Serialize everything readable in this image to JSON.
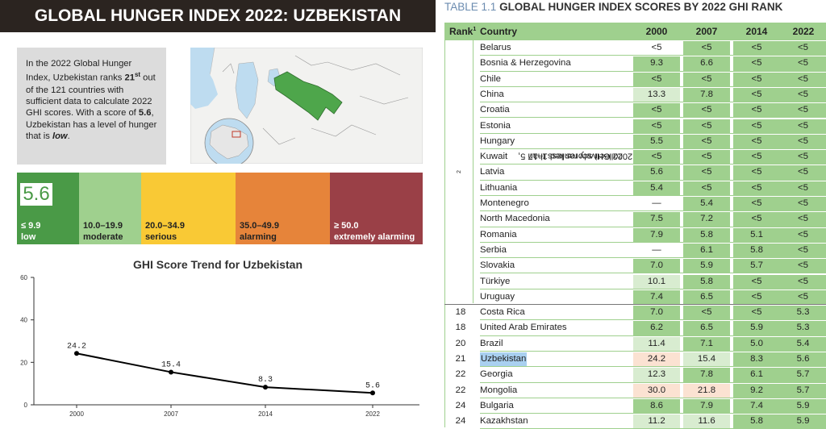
{
  "left": {
    "title": "GLOBAL HUNGER INDEX 2022: UZBEKISTAN",
    "info": {
      "part1": "In the 2022 Global Hunger Index, Uzbekistan ranks ",
      "rank": "21",
      "rank_sup": "st",
      "part2": " out of the 121 countries with sufficient data to calculate 2022 GHI scores. With a score of ",
      "score": "5.6",
      "part3": ", Uzbekistan has a level of hunger that is ",
      "level": "low",
      "part4": "."
    },
    "score_display": "5.6",
    "scale": [
      {
        "range": "≤ 9.9",
        "level": "low",
        "color": "#4a9a47",
        "dark": false
      },
      {
        "range": "10.0–19.9",
        "level": "moderate",
        "color": "#9fd08e",
        "dark": true
      },
      {
        "range": "20.0–34.9",
        "level": "serious",
        "color": "#f9c935",
        "dark": true
      },
      {
        "range": "35.0–49.9",
        "level": "alarming",
        "color": "#e6843a",
        "dark": true
      },
      {
        "range": "≥ 50.0",
        "level": "extremely alarming",
        "color": "#9a4047",
        "dark": false
      }
    ],
    "trend_title": "GHI Score Trend for Uzbekistan"
  },
  "chart_data": {
    "type": "line",
    "title": "GHI Score Trend for Uzbekistan",
    "x": [
      "2000",
      "2007",
      "2014",
      "2022"
    ],
    "values": [
      24.2,
      15.4,
      8.3,
      5.6
    ],
    "value_labels": [
      "24.2",
      "15.4",
      "8.3",
      "5.6"
    ],
    "yticks": [
      "0",
      "20",
      "40",
      "60"
    ],
    "ylim": [
      0,
      60
    ],
    "grid": false,
    "color": "#000000"
  },
  "table": {
    "number": "TABLE 1.1",
    "title": "GLOBAL HUNGER INDEX SCORES BY 2022 GHI RANK",
    "headers": {
      "rank": "Rank",
      "rank_sup": "1",
      "country": "Country",
      "y2000": "2000",
      "y2007": "2007",
      "y2014": "2014",
      "y2022": "2022"
    },
    "group_label_line1": "2022 GHI scores less than 5,",
    "group_label_line2": "collectively ranked 1–17",
    "group_label_sup": "2",
    "colors": {
      "low": "#9fd08e",
      "moderate": "#d8ecd0",
      "serious": "#fbe2d2",
      "none": "#ffffff"
    },
    "rows": [
      {
        "rank": "",
        "country": "Belarus",
        "v": [
          "<5",
          "<5",
          "<5",
          "<5"
        ],
        "c": [
          "none",
          "low",
          "low",
          "low"
        ]
      },
      {
        "rank": "",
        "country": "Bosnia & Herzegovina",
        "v": [
          "9.3",
          "6.6",
          "<5",
          "<5"
        ],
        "c": [
          "low",
          "low",
          "low",
          "low"
        ]
      },
      {
        "rank": "",
        "country": "Chile",
        "v": [
          "<5",
          "<5",
          "<5",
          "<5"
        ],
        "c": [
          "low",
          "low",
          "low",
          "low"
        ]
      },
      {
        "rank": "",
        "country": "China",
        "v": [
          "13.3",
          "7.8",
          "<5",
          "<5"
        ],
        "c": [
          "moderate",
          "low",
          "low",
          "low"
        ]
      },
      {
        "rank": "",
        "country": "Croatia",
        "v": [
          "<5",
          "<5",
          "<5",
          "<5"
        ],
        "c": [
          "low",
          "low",
          "low",
          "low"
        ]
      },
      {
        "rank": "",
        "country": "Estonia",
        "v": [
          "<5",
          "<5",
          "<5",
          "<5"
        ],
        "c": [
          "low",
          "low",
          "low",
          "low"
        ]
      },
      {
        "rank": "",
        "country": "Hungary",
        "v": [
          "5.5",
          "<5",
          "<5",
          "<5"
        ],
        "c": [
          "low",
          "low",
          "low",
          "low"
        ]
      },
      {
        "rank": "",
        "country": "Kuwait",
        "v": [
          "<5",
          "<5",
          "<5",
          "<5"
        ],
        "c": [
          "low",
          "low",
          "low",
          "low"
        ]
      },
      {
        "rank": "",
        "country": "Latvia",
        "v": [
          "5.6",
          "<5",
          "<5",
          "<5"
        ],
        "c": [
          "low",
          "low",
          "low",
          "low"
        ]
      },
      {
        "rank": "",
        "country": "Lithuania",
        "v": [
          "5.4",
          "<5",
          "<5",
          "<5"
        ],
        "c": [
          "low",
          "low",
          "low",
          "low"
        ]
      },
      {
        "rank": "",
        "country": "Montenegro",
        "v": [
          "—",
          "5.4",
          "<5",
          "<5"
        ],
        "c": [
          "none",
          "low",
          "low",
          "low"
        ]
      },
      {
        "rank": "",
        "country": "North Macedonia",
        "v": [
          "7.5",
          "7.2",
          "<5",
          "<5"
        ],
        "c": [
          "low",
          "low",
          "low",
          "low"
        ]
      },
      {
        "rank": "",
        "country": "Romania",
        "v": [
          "7.9",
          "5.8",
          "5.1",
          "<5"
        ],
        "c": [
          "low",
          "low",
          "low",
          "low"
        ]
      },
      {
        "rank": "",
        "country": "Serbia",
        "v": [
          "—",
          "6.1",
          "5.8",
          "<5"
        ],
        "c": [
          "none",
          "low",
          "low",
          "low"
        ]
      },
      {
        "rank": "",
        "country": "Slovakia",
        "v": [
          "7.0",
          "5.9",
          "5.7",
          "<5"
        ],
        "c": [
          "low",
          "low",
          "low",
          "low"
        ]
      },
      {
        "rank": "",
        "country": "Türkiye",
        "v": [
          "10.1",
          "5.8",
          "<5",
          "<5"
        ],
        "c": [
          "moderate",
          "low",
          "low",
          "low"
        ]
      },
      {
        "rank": "",
        "country": "Uruguay",
        "v": [
          "7.4",
          "6.5",
          "<5",
          "<5"
        ],
        "c": [
          "low",
          "low",
          "low",
          "low"
        ]
      },
      {
        "rank": "18",
        "country": "Costa Rica",
        "v": [
          "7.0",
          "<5",
          "<5",
          "5.3"
        ],
        "c": [
          "low",
          "low",
          "low",
          "low"
        ]
      },
      {
        "rank": "18",
        "country": "United Arab Emirates",
        "v": [
          "6.2",
          "6.5",
          "5.9",
          "5.3"
        ],
        "c": [
          "low",
          "low",
          "low",
          "low"
        ]
      },
      {
        "rank": "20",
        "country": "Brazil",
        "v": [
          "11.4",
          "7.1",
          "5.0",
          "5.4"
        ],
        "c": [
          "moderate",
          "low",
          "low",
          "low"
        ]
      },
      {
        "rank": "21",
        "country": "Uzbekistan",
        "v": [
          "24.2",
          "15.4",
          "8.3",
          "5.6"
        ],
        "c": [
          "serious",
          "moderate",
          "low",
          "low"
        ],
        "highlight": true
      },
      {
        "rank": "22",
        "country": "Georgia",
        "v": [
          "12.3",
          "7.8",
          "6.1",
          "5.7"
        ],
        "c": [
          "moderate",
          "low",
          "low",
          "low"
        ]
      },
      {
        "rank": "22",
        "country": "Mongolia",
        "v": [
          "30.0",
          "21.8",
          "9.2",
          "5.7"
        ],
        "c": [
          "serious",
          "serious",
          "low",
          "low"
        ]
      },
      {
        "rank": "24",
        "country": "Bulgaria",
        "v": [
          "8.6",
          "7.9",
          "7.4",
          "5.9"
        ],
        "c": [
          "low",
          "low",
          "low",
          "low"
        ]
      },
      {
        "rank": "24",
        "country": "Kazakhstan",
        "v": [
          "11.2",
          "11.6",
          "5.8",
          "5.9"
        ],
        "c": [
          "moderate",
          "moderate",
          "low",
          "low"
        ]
      }
    ]
  }
}
